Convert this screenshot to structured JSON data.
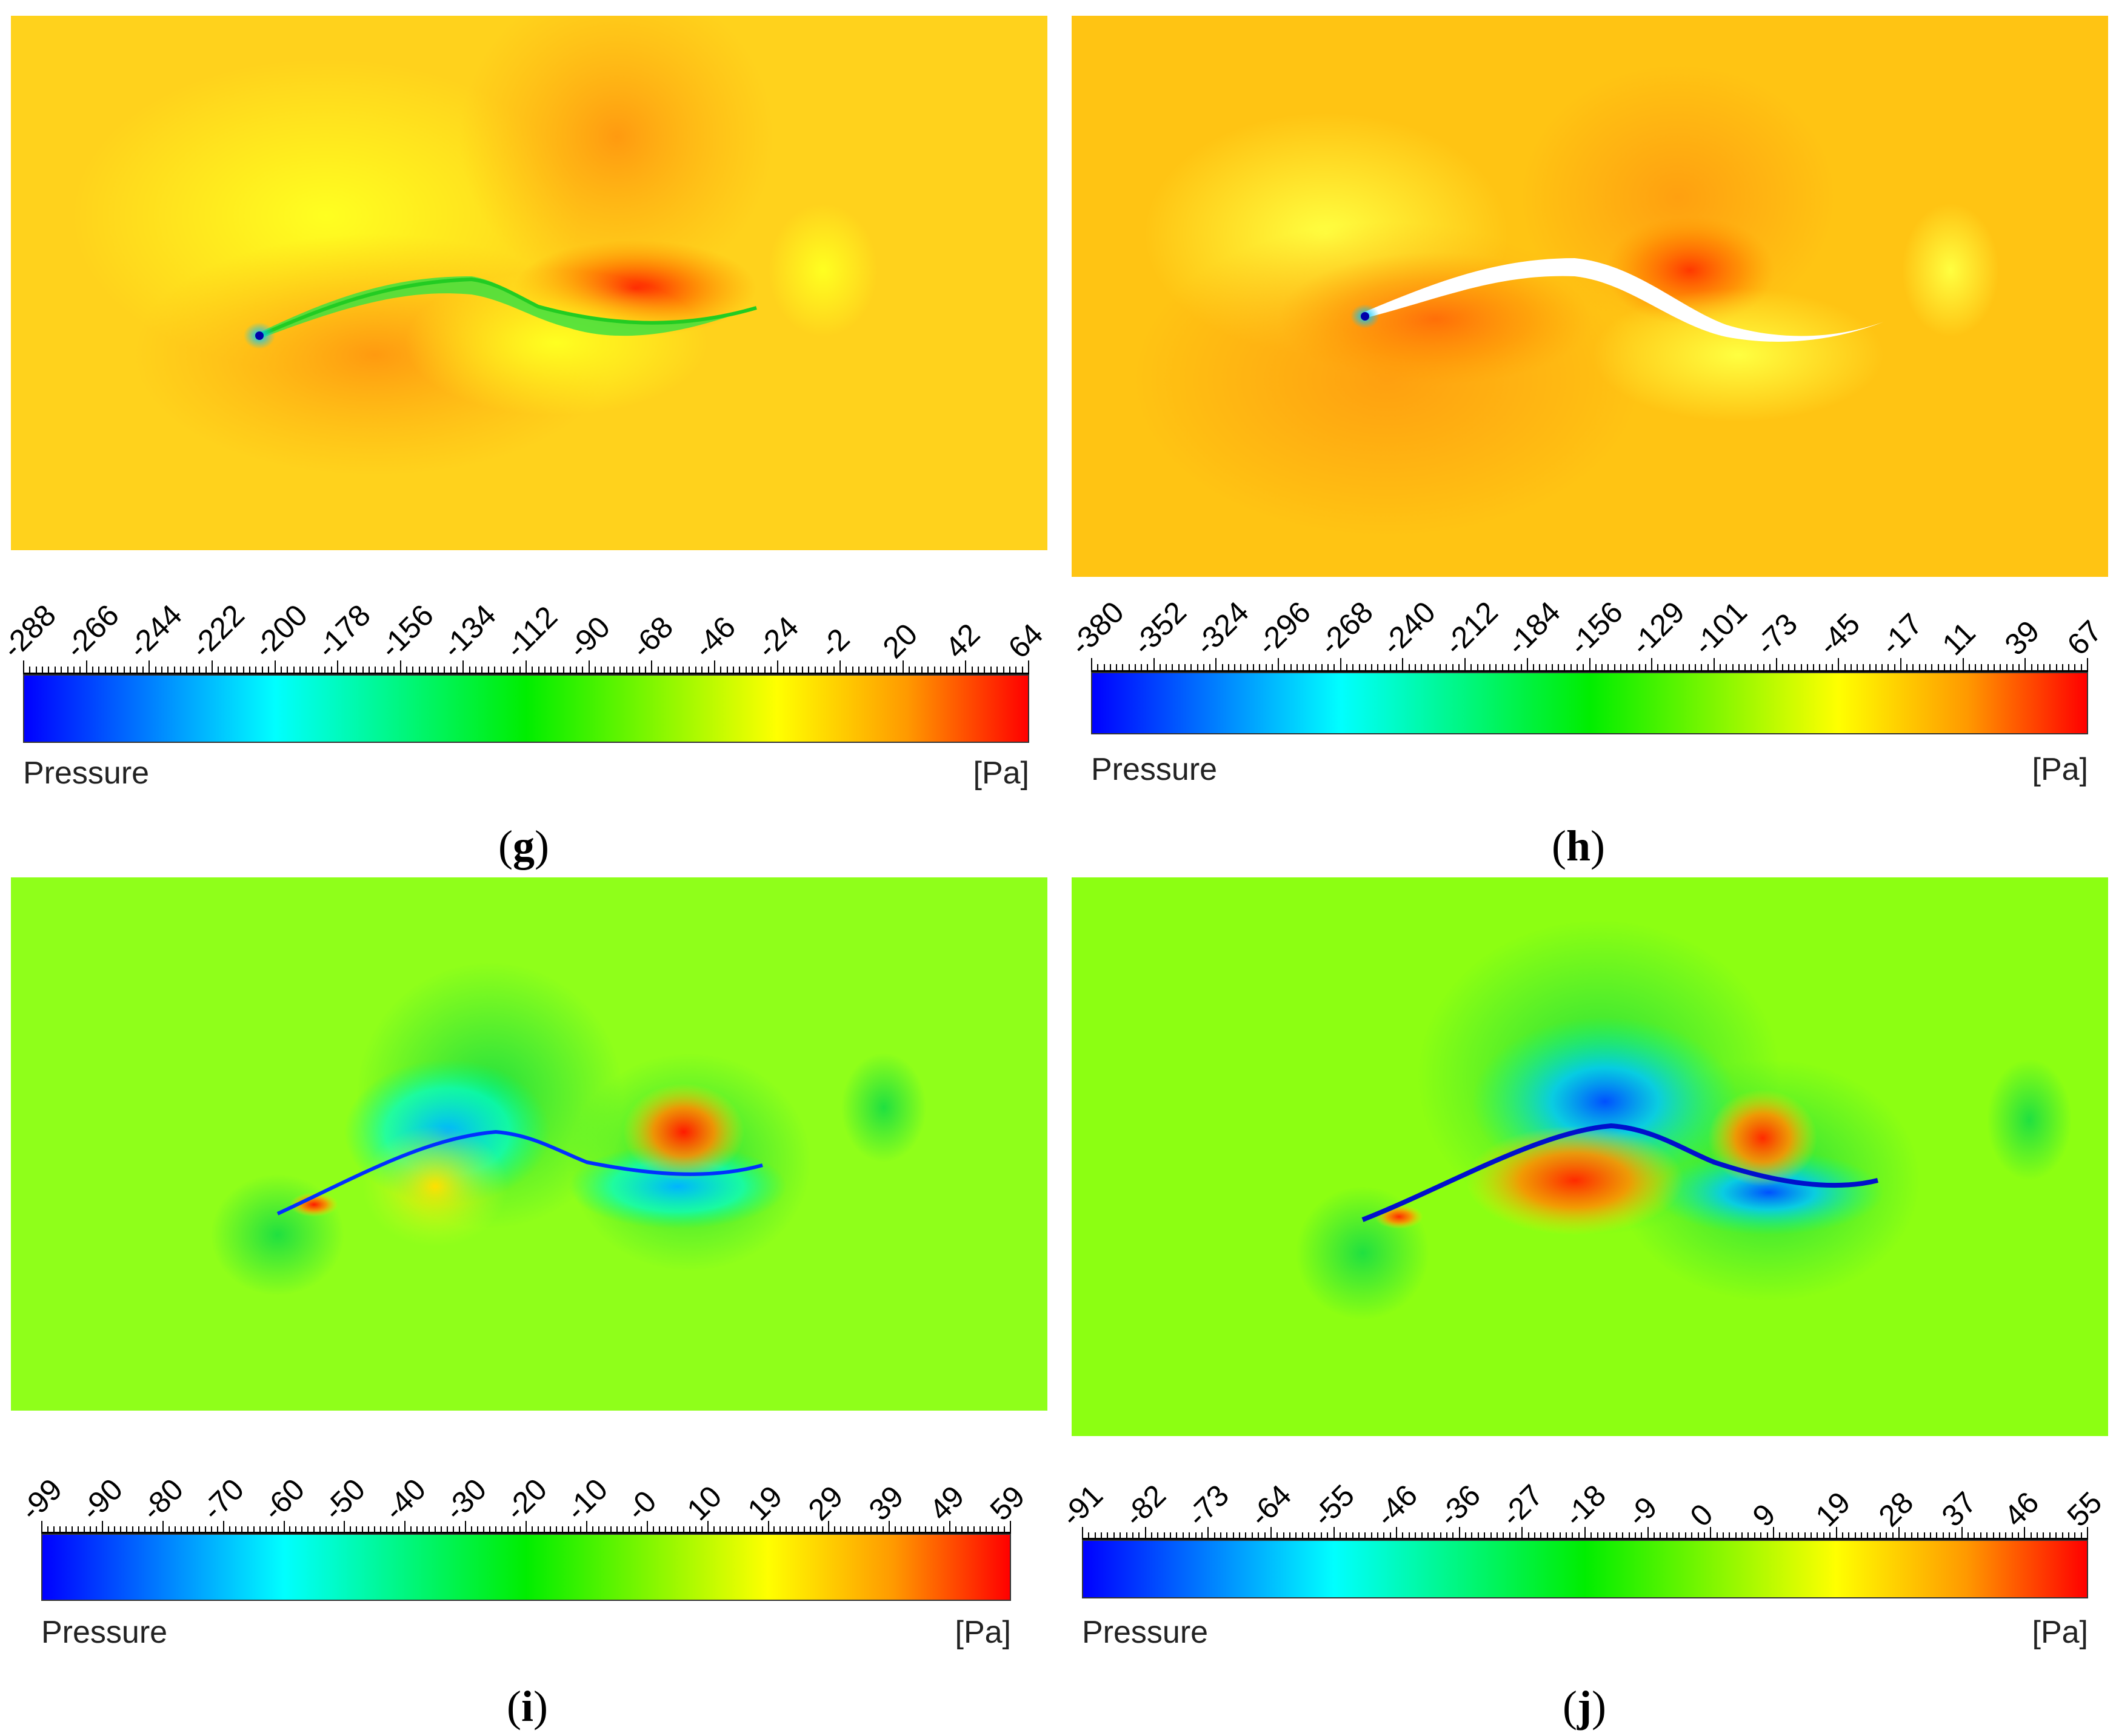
{
  "figure": {
    "panels": [
      {
        "id": "g",
        "letter": "g",
        "title": "Pressure",
        "unit": "[Pa]",
        "ticks": [
          "-288",
          "-266",
          "-244",
          "-222",
          "-200",
          "-178",
          "-156",
          "-134",
          "-112",
          "-90",
          "-68",
          "-46",
          "-24",
          "-2",
          "20",
          "42",
          "64"
        ],
        "background": "#ffd21c",
        "scheme": "rainbow"
      },
      {
        "id": "h",
        "letter": "h",
        "title": "Pressure",
        "unit": "[Pa]",
        "ticks": [
          "-380",
          "-352",
          "-324",
          "-296",
          "-268",
          "-240",
          "-212",
          "-184",
          "-156",
          "-129",
          "-101",
          "-73",
          "-45",
          "-17",
          "11",
          "39",
          "67"
        ],
        "background": "#ffc413",
        "scheme": "rainbow"
      },
      {
        "id": "i",
        "letter": "i",
        "title": "Pressure",
        "unit": "[Pa]",
        "ticks": [
          "-99",
          "-90",
          "-80",
          "-70",
          "-60",
          "-50",
          "-40",
          "-30",
          "-20",
          "-10",
          "-0",
          "10",
          "19",
          "29",
          "39",
          "49",
          "59"
        ],
        "background": "#8fff1a",
        "scheme": "rainbow"
      },
      {
        "id": "j",
        "letter": "j",
        "title": "Pressure",
        "unit": "[Pa]",
        "ticks": [
          "-91",
          "-82",
          "-73",
          "-64",
          "-55",
          "-46",
          "-36",
          "-27",
          "-18",
          "-9",
          "0",
          "9",
          "19",
          "28",
          "37",
          "46",
          "55"
        ],
        "background": "#8cff12",
        "scheme": "rainbow"
      }
    ],
    "colors": {
      "blue": "#0000ff",
      "cyan": "#00ffff",
      "green": "#00ee00",
      "yellow": "#ffff00",
      "orange": "#ff9900",
      "red": "#ff0000"
    }
  }
}
